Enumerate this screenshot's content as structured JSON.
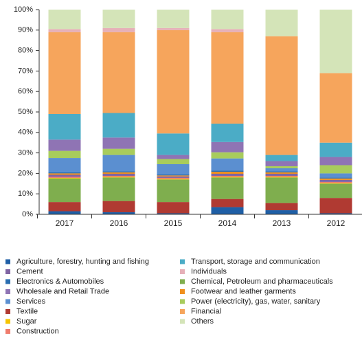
{
  "chart_data": {
    "type": "stacked_bar",
    "categories": [
      "2017",
      "2016",
      "2015",
      "2014",
      "2013",
      "2012"
    ],
    "ylim": [
      0,
      100
    ],
    "yticks": [
      {
        "value": 0,
        "label": "0%"
      },
      {
        "value": 10,
        "label": "10%"
      },
      {
        "value": 20,
        "label": "20%"
      },
      {
        "value": 30,
        "label": "30%"
      },
      {
        "value": 40,
        "label": "40%"
      },
      {
        "value": 50,
        "label": "50%"
      },
      {
        "value": 60,
        "label": "60%"
      },
      {
        "value": 70,
        "label": "70%"
      },
      {
        "value": 80,
        "label": "80%"
      },
      {
        "value": 90,
        "label": "90%"
      },
      {
        "value": 100,
        "label": "100%"
      }
    ],
    "series": [
      {
        "name": "Agriculture, forestry, hunting and fishing",
        "color": "#1f5fa6",
        "values": [
          1.5,
          1,
          0.5,
          3.5,
          2,
          0.5
        ]
      },
      {
        "name": "Cement",
        "color": "#8064a2",
        "values": [
          1,
          1,
          0.7,
          1,
          1,
          1
        ]
      },
      {
        "name": "Electronics & Automobiles",
        "color": "#2a6db0",
        "values": [
          0.5,
          0.5,
          0.5,
          0.5,
          0.5,
          0.5
        ]
      },
      {
        "name": "Wholesale and Retail Trade",
        "color": "#8f74b4",
        "values": [
          5.5,
          5.5,
          2,
          5,
          2.5,
          4
        ]
      },
      {
        "name": "Services",
        "color": "#5b8fd0",
        "values": [
          7,
          8,
          5,
          6,
          1.5,
          2
        ]
      },
      {
        "name": "Textile",
        "color": "#b03a32",
        "values": [
          4.5,
          5.5,
          5.5,
          4,
          3.5,
          7.5
        ]
      },
      {
        "name": "Sugar",
        "color": "#f5c400",
        "values": [
          0.3,
          0.3,
          0.3,
          0.3,
          0.3,
          0.3
        ]
      },
      {
        "name": "Construction",
        "color": "#f07c6c",
        "values": [
          0.5,
          0.5,
          0.5,
          0.5,
          0.5,
          0.5
        ]
      },
      {
        "name": "Transport, storage and communication",
        "color": "#4bacc6",
        "values": [
          12.5,
          12,
          10.5,
          9,
          3,
          7
        ]
      },
      {
        "name": "Individuals",
        "color": "#e6b0b8",
        "values": [
          1.5,
          2,
          1,
          1.5,
          0,
          0
        ]
      },
      {
        "name": "Chemical, Petroleum and pharmaceuticals",
        "color": "#7fae4e",
        "values": [
          11.5,
          11.5,
          11,
          10.5,
          12.5,
          7
        ]
      },
      {
        "name": "Footwear and leather garments",
        "color": "#f0901e",
        "values": [
          0.7,
          0.7,
          0.5,
          1,
          0.7,
          0.7
        ]
      },
      {
        "name": "Power (electricity), gas, water, sanitary",
        "color": "#a8cc5c",
        "values": [
          3.5,
          3,
          2.5,
          3,
          1,
          4
        ]
      },
      {
        "name": "Financial",
        "color": "#f6a55c",
        "values": [
          40,
          39.5,
          50.5,
          44.7,
          58,
          34
        ]
      },
      {
        "name": "Others",
        "color": "#d4e4b8",
        "values": [
          9.5,
          9,
          9,
          9.5,
          13,
          31
        ]
      }
    ]
  }
}
